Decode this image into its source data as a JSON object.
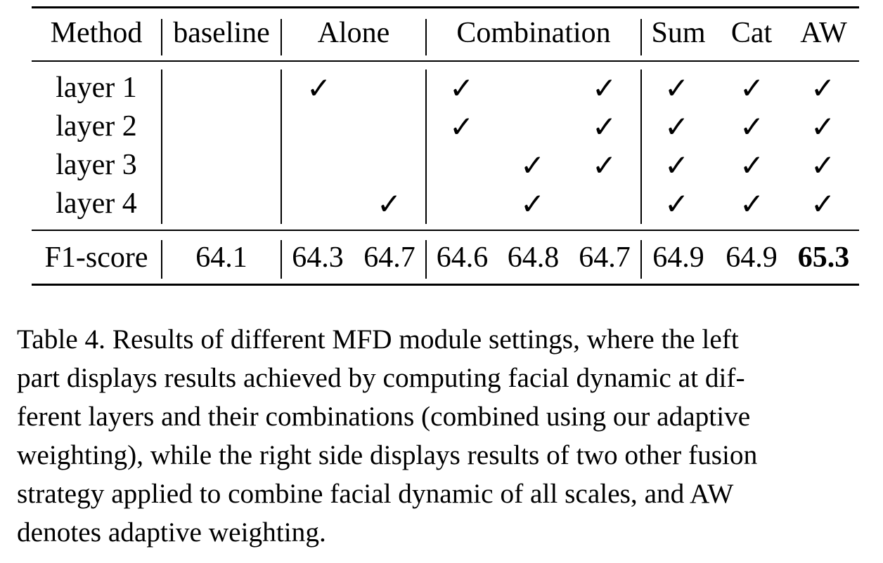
{
  "table": {
    "header": {
      "method": "Method",
      "baseline": "baseline",
      "alone": "Alone",
      "combination": "Combination",
      "sum": "Sum",
      "cat": "Cat",
      "aw": "AW"
    },
    "rows": [
      {
        "label": "layer 1"
      },
      {
        "label": "layer 2"
      },
      {
        "label": "layer 3"
      },
      {
        "label": "layer 4"
      }
    ],
    "check_mark": "✓",
    "f1": {
      "label": "F1-score",
      "baseline": "64.1",
      "alone": [
        "64.3",
        "64.7"
      ],
      "combination": [
        "64.6",
        "64.8",
        "64.7"
      ],
      "sum": "64.9",
      "cat": "64.9",
      "aw": "65.3"
    }
  },
  "caption": {
    "lines": [
      "Table 4. Results of different MFD module settings, where the left",
      "part displays results achieved by computing facial dynamic at dif-",
      "ferent layers and their combinations (combined using our adaptive",
      "weighting), while the right side displays results of two other fusion",
      "strategy applied to combine facial dynamic of all scales, and AW",
      "denotes adaptive weighting."
    ]
  }
}
